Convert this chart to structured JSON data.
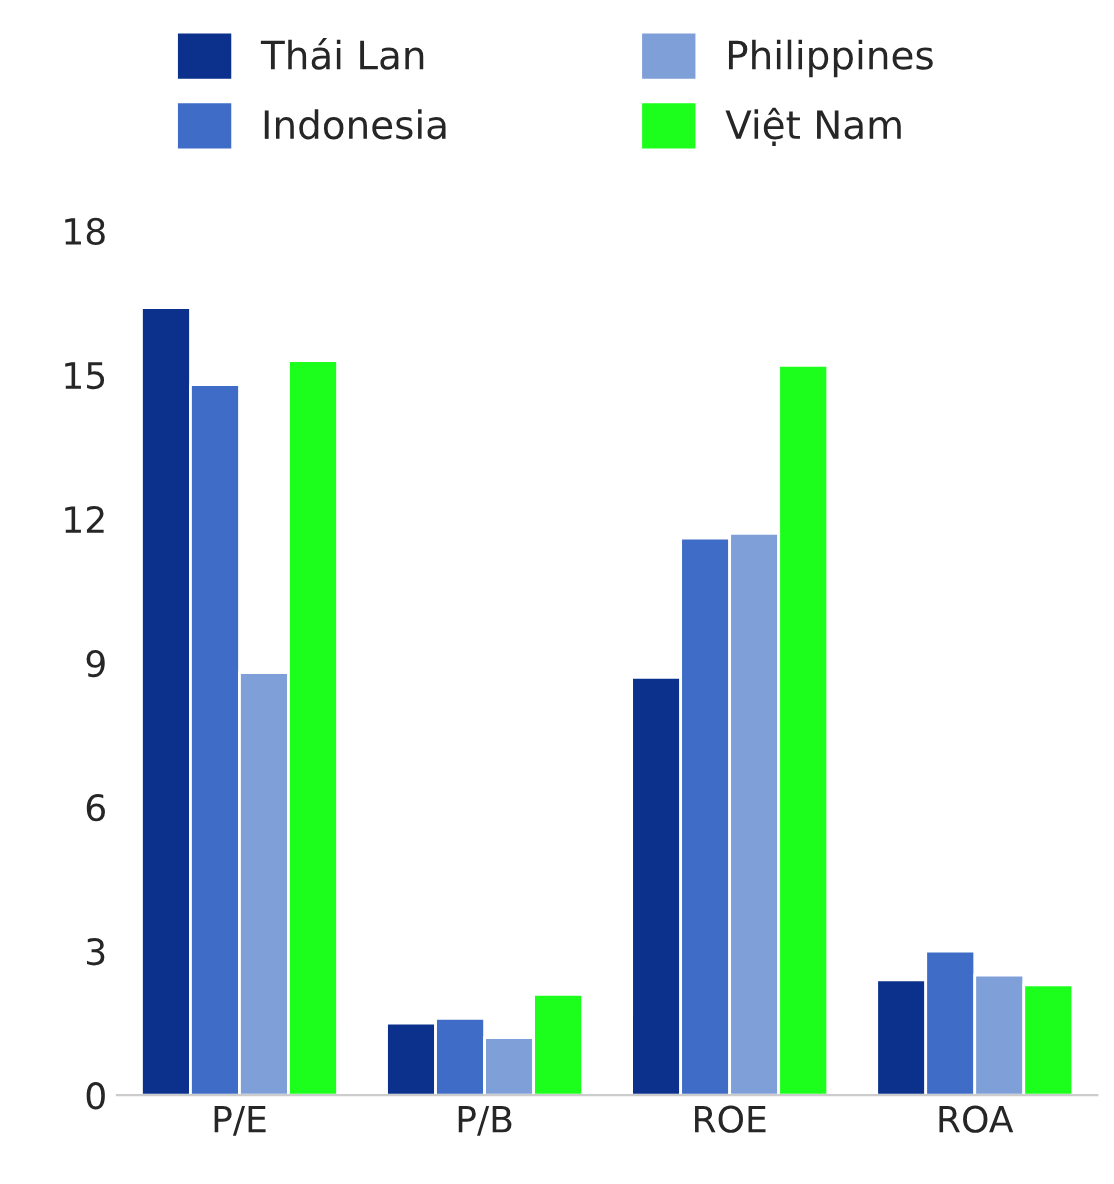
{
  "chart_data": {
    "type": "bar",
    "categories": [
      "P/E",
      "P/B",
      "ROE",
      "ROA"
    ],
    "series": [
      {
        "name": "Thái Lan",
        "color": "#0b318c",
        "values": [
          16.4,
          1.5,
          8.7,
          2.4
        ]
      },
      {
        "name": "Indonesia",
        "color": "#3f6cc6",
        "values": [
          14.8,
          1.6,
          11.6,
          3.0
        ]
      },
      {
        "name": "Philippines",
        "color": "#7f9fd9",
        "values": [
          8.8,
          1.2,
          11.7,
          2.5
        ]
      },
      {
        "name": "Việt Nam",
        "color": "#1cff1c",
        "values": [
          15.3,
          2.1,
          15.2,
          2.3
        ]
      }
    ],
    "ylim": [
      0,
      18
    ],
    "yticks": [
      0,
      3,
      6,
      9,
      12,
      15,
      18
    ],
    "grid": false,
    "legend": "top"
  }
}
